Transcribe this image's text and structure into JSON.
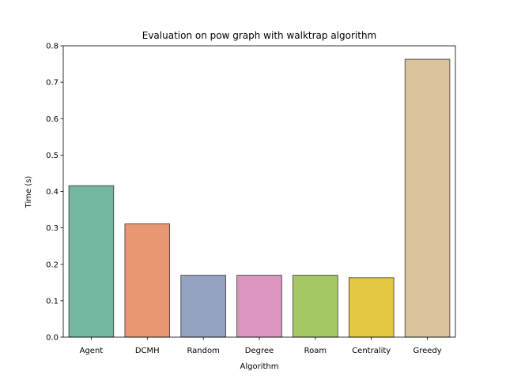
{
  "chart_data": {
    "type": "bar",
    "title": "Evaluation on pow graph with walktrap algorithm",
    "xlabel": "Algorithm",
    "ylabel": "Time (s)",
    "categories": [
      "Agent",
      "DCMH",
      "Random",
      "Degree",
      "Roam",
      "Centrality",
      "Greedy"
    ],
    "values": [
      0.416,
      0.311,
      0.17,
      0.17,
      0.17,
      0.163,
      0.763
    ],
    "colors": [
      "#74b69f",
      "#e99675",
      "#95a3c3",
      "#db96c0",
      "#a4c964",
      "#e4c843",
      "#dbc39e"
    ],
    "ylim": [
      0,
      0.8
    ],
    "yticks": [
      "0.0",
      "0.1",
      "0.2",
      "0.3",
      "0.4",
      "0.5",
      "0.6",
      "0.7",
      "0.8"
    ],
    "grid": false,
    "legend": "none"
  }
}
